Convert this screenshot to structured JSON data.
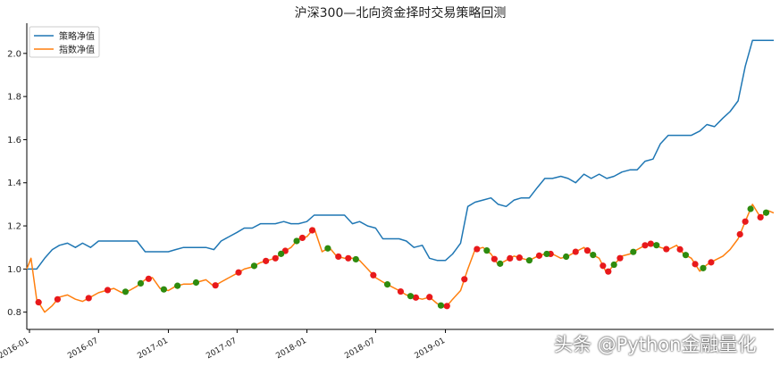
{
  "chart_data": {
    "type": "line",
    "title": "沪深300—北向资金择时交易策略回测",
    "xlabel": "",
    "ylabel": "",
    "ylim": [
      0.72,
      2.14
    ],
    "yticks": [
      0.8,
      1.0,
      1.2,
      1.4,
      1.6,
      1.8,
      2.0
    ],
    "xlim": [
      "2015-12-25",
      "2021-05-15"
    ],
    "xticks": [
      "2016-01",
      "2016-07",
      "2017-01",
      "2017-07",
      "2018-01",
      "2018-07",
      "2019-01"
    ],
    "grid": false,
    "legend": {
      "position": "top-left"
    },
    "series": [
      {
        "name": "策略净值",
        "color": "#1f77b4",
        "x": [
          "2015-12-25",
          "2016-01-05",
          "2016-01-20",
          "2016-02-10",
          "2016-03-01",
          "2016-03-20",
          "2016-04-10",
          "2016-05-01",
          "2016-05-20",
          "2016-06-10",
          "2016-07-01",
          "2016-07-20",
          "2016-08-10",
          "2016-09-01",
          "2016-09-20",
          "2016-10-10",
          "2016-11-01",
          "2016-11-20",
          "2016-12-10",
          "2017-01-01",
          "2017-01-20",
          "2017-02-10",
          "2017-03-01",
          "2017-03-20",
          "2017-04-10",
          "2017-05-01",
          "2017-05-20",
          "2017-06-10",
          "2017-07-01",
          "2017-07-20",
          "2017-08-10",
          "2017-09-01",
          "2017-09-20",
          "2017-10-10",
          "2017-11-01",
          "2017-11-20",
          "2017-12-10",
          "2018-01-01",
          "2018-01-20",
          "2018-02-10",
          "2018-03-01",
          "2018-03-20",
          "2018-04-10",
          "2018-05-01",
          "2018-05-20",
          "2018-06-10",
          "2018-07-01",
          "2018-07-20",
          "2018-08-10",
          "2018-09-01",
          "2018-09-20",
          "2018-10-10",
          "2018-11-01",
          "2018-11-20",
          "2018-12-10",
          "2019-01-01",
          "2019-01-20",
          "2019-02-10",
          "2019-03-01",
          "2019-03-20",
          "2019-04-10",
          "2019-05-01",
          "2019-05-20",
          "2019-06-10",
          "2019-07-01",
          "2019-07-20",
          "2019-08-10",
          "2019-09-01",
          "2019-09-20",
          "2019-10-10",
          "2019-11-01",
          "2019-11-20",
          "2019-12-10",
          "2020-01-01",
          "2020-01-20",
          "2020-02-10",
          "2020-03-01",
          "2020-03-20",
          "2020-04-10",
          "2020-05-01",
          "2020-05-20",
          "2020-06-10",
          "2020-07-01",
          "2020-07-20",
          "2020-08-10",
          "2020-09-01",
          "2020-09-20",
          "2020-10-10",
          "2020-11-01",
          "2020-11-20",
          "2020-12-10",
          "2021-01-01",
          "2021-01-20",
          "2021-02-10",
          "2021-03-01",
          "2021-03-20",
          "2021-04-10",
          "2021-05-01",
          "2021-05-15"
        ],
        "values": [
          1.0,
          1.0,
          1.0,
          1.05,
          1.09,
          1.11,
          1.12,
          1.1,
          1.12,
          1.1,
          1.13,
          1.13,
          1.13,
          1.13,
          1.13,
          1.13,
          1.08,
          1.08,
          1.08,
          1.08,
          1.09,
          1.1,
          1.1,
          1.1,
          1.1,
          1.09,
          1.13,
          1.15,
          1.17,
          1.19,
          1.19,
          1.21,
          1.21,
          1.21,
          1.22,
          1.21,
          1.21,
          1.22,
          1.25,
          1.25,
          1.25,
          1.25,
          1.25,
          1.21,
          1.22,
          1.2,
          1.19,
          1.14,
          1.14,
          1.14,
          1.13,
          1.1,
          1.11,
          1.05,
          1.04,
          1.04,
          1.07,
          1.12,
          1.29,
          1.31,
          1.32,
          1.33,
          1.3,
          1.29,
          1.32,
          1.33,
          1.33,
          1.38,
          1.42,
          1.42,
          1.43,
          1.42,
          1.4,
          1.44,
          1.42,
          1.44,
          1.42,
          1.43,
          1.45,
          1.46,
          1.46,
          1.5,
          1.51,
          1.58,
          1.62,
          1.62,
          1.62,
          1.62,
          1.64,
          1.67,
          1.66,
          1.7,
          1.73,
          1.78,
          1.94,
          2.06,
          2.06,
          2.06,
          2.06
        ]
      },
      {
        "name": "指数净值",
        "color": "#ff7f0e",
        "x": [
          "2015-12-25",
          "2016-01-05",
          "2016-01-20",
          "2016-02-10",
          "2016-03-01",
          "2016-03-20",
          "2016-04-10",
          "2016-05-01",
          "2016-05-20",
          "2016-06-10",
          "2016-07-01",
          "2016-07-20",
          "2016-08-10",
          "2016-09-01",
          "2016-09-20",
          "2016-10-10",
          "2016-11-01",
          "2016-11-20",
          "2016-12-10",
          "2017-01-01",
          "2017-01-20",
          "2017-02-10",
          "2017-03-01",
          "2017-03-20",
          "2017-04-10",
          "2017-05-01",
          "2017-05-20",
          "2017-06-10",
          "2017-07-01",
          "2017-07-20",
          "2017-08-10",
          "2017-09-01",
          "2017-09-20",
          "2017-10-10",
          "2017-11-01",
          "2017-11-20",
          "2017-12-10",
          "2018-01-01",
          "2018-01-20",
          "2018-02-10",
          "2018-03-01",
          "2018-03-20",
          "2018-04-10",
          "2018-05-01",
          "2018-05-20",
          "2018-06-10",
          "2018-07-01",
          "2018-07-20",
          "2018-08-10",
          "2018-09-01",
          "2018-09-20",
          "2018-10-10",
          "2018-11-01",
          "2018-11-20",
          "2018-12-10",
          "2019-01-01",
          "2019-01-20",
          "2019-02-10",
          "2019-03-01",
          "2019-03-20",
          "2019-04-10",
          "2019-05-01",
          "2019-05-20",
          "2019-06-10",
          "2019-07-01",
          "2019-07-20",
          "2019-08-10",
          "2019-09-01",
          "2019-09-20",
          "2019-10-10",
          "2019-11-01",
          "2019-11-20",
          "2019-12-10",
          "2020-01-01",
          "2020-01-20",
          "2020-02-10",
          "2020-03-01",
          "2020-03-20",
          "2020-04-10",
          "2020-05-01",
          "2020-05-20",
          "2020-06-10",
          "2020-07-01",
          "2020-07-20",
          "2020-08-10",
          "2020-09-01",
          "2020-09-20",
          "2020-10-10",
          "2020-11-01",
          "2020-11-20",
          "2020-12-10",
          "2021-01-01",
          "2021-01-20",
          "2021-02-10",
          "2021-03-01",
          "2021-03-20",
          "2021-04-10",
          "2021-05-01",
          "2021-05-15"
        ],
        "values": [
          1.0,
          1.05,
          0.86,
          0.8,
          0.83,
          0.87,
          0.88,
          0.86,
          0.85,
          0.87,
          0.89,
          0.9,
          0.91,
          0.89,
          0.9,
          0.92,
          0.95,
          0.96,
          0.91,
          0.9,
          0.92,
          0.93,
          0.93,
          0.94,
          0.95,
          0.92,
          0.94,
          0.96,
          0.98,
          1.0,
          1.01,
          1.03,
          1.04,
          1.05,
          1.08,
          1.1,
          1.14,
          1.15,
          1.19,
          1.08,
          1.1,
          1.06,
          1.05,
          1.05,
          1.04,
          1.0,
          0.96,
          0.94,
          0.92,
          0.9,
          0.88,
          0.87,
          0.86,
          0.87,
          0.84,
          0.82,
          0.86,
          0.9,
          1.0,
          1.09,
          1.1,
          1.07,
          1.02,
          1.04,
          1.06,
          1.05,
          1.04,
          1.06,
          1.07,
          1.07,
          1.05,
          1.06,
          1.08,
          1.1,
          1.07,
          1.05,
          0.98,
          1.02,
          1.06,
          1.07,
          1.09,
          1.11,
          1.12,
          1.1,
          1.09,
          1.11,
          1.07,
          1.05,
          0.99,
          1.02,
          1.04,
          1.06,
          1.09,
          1.14,
          1.22,
          1.3,
          1.24,
          1.27,
          1.26
        ]
      }
    ],
    "markers": {
      "red_x": [
        "2016-01-25",
        "2016-03-15",
        "2016-06-05",
        "2016-07-25",
        "2016-11-10",
        "2017-05-05",
        "2017-07-05",
        "2017-09-15",
        "2017-10-10",
        "2017-11-05",
        "2017-12-20",
        "2018-01-15",
        "2018-03-25",
        "2018-04-20",
        "2018-06-25",
        "2018-09-05",
        "2018-10-15",
        "2018-11-20",
        "2019-01-05",
        "2019-02-20",
        "2019-03-25",
        "2019-05-10",
        "2019-06-20",
        "2019-07-15",
        "2019-09-05",
        "2019-10-05",
        "2019-12-10",
        "2020-01-10",
        "2020-02-20",
        "2020-03-05",
        "2020-04-05",
        "2020-06-10",
        "2020-06-25",
        "2020-08-05",
        "2020-09-10",
        "2020-10-20",
        "2020-12-01",
        "2021-02-15",
        "2021-03-01",
        "2021-04-10"
      ],
      "green_x": [
        "2016-09-10",
        "2016-10-20",
        "2016-12-20",
        "2017-01-25",
        "2017-03-15",
        "2017-08-15",
        "2017-10-25",
        "2017-12-05",
        "2018-02-25",
        "2018-05-10",
        "2018-08-01",
        "2018-10-01",
        "2018-12-20",
        "2019-04-20",
        "2019-05-25",
        "2019-08-10",
        "2019-09-25",
        "2019-11-15",
        "2020-01-25",
        "2020-03-20",
        "2020-05-10",
        "2020-07-10",
        "2020-09-25",
        "2020-11-10",
        "2021-03-15",
        "2021-04-25"
      ]
    }
  },
  "watermark": "头条 @Python金融量化"
}
